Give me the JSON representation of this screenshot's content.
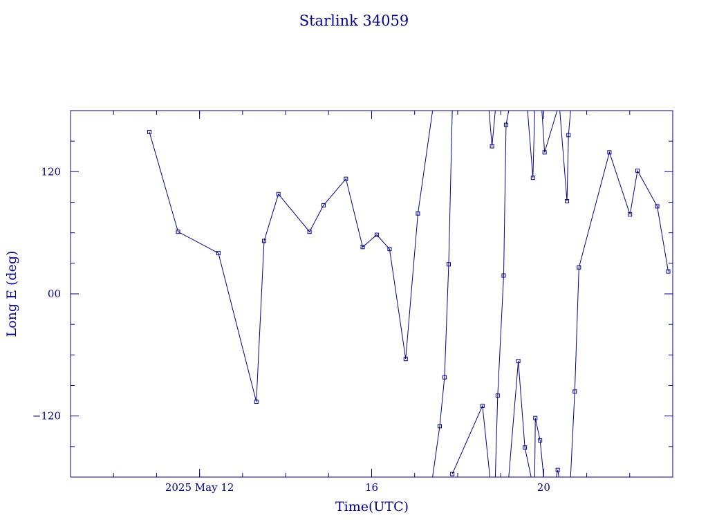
{
  "chart_data": {
    "type": "line",
    "title": "Starlink 34059",
    "xlabel": "Time(UTC)",
    "ylabel": "Long E (deg)",
    "color": "#00008b",
    "xlim": [
      "2025-05-09",
      "2025-05-23"
    ],
    "ylim": [
      -180,
      180
    ],
    "x_ticks": [
      {
        "value": "2025-05-12",
        "label": "2025 May 12"
      },
      {
        "value": "2025-05-16",
        "label": "16"
      },
      {
        "value": "2025-05-20",
        "label": "20"
      }
    ],
    "y_ticks": [
      {
        "value": -120,
        "label": "−120"
      },
      {
        "value": 0,
        "label": "00"
      },
      {
        "value": 120,
        "label": "120"
      }
    ],
    "series": [
      {
        "points": [
          {
            "x": "2025-05-10T20:00",
            "y": 159
          },
          {
            "x": "2025-05-11T12:00",
            "y": 61
          },
          {
            "x": "2025-05-12T10:30",
            "y": 40
          },
          {
            "x": "2025-05-13T07:40",
            "y": -106
          },
          {
            "x": "2025-05-13T12:00",
            "y": 52
          },
          {
            "x": "2025-05-13T20:00",
            "y": 98
          },
          {
            "x": "2025-05-14T13:20",
            "y": 61
          },
          {
            "x": "2025-05-14T21:10",
            "y": 87
          },
          {
            "x": "2025-05-15T09:40",
            "y": 113
          },
          {
            "x": "2025-05-15T19:00",
            "y": 46
          },
          {
            "x": "2025-05-16T02:50",
            "y": 58
          },
          {
            "x": "2025-05-16T10:00",
            "y": 44
          },
          {
            "x": "2025-05-16T19:00",
            "y": -64
          },
          {
            "x": "2025-05-17T01:50",
            "y": 79
          },
          {
            "x": "2025-05-17T10:00",
            "y": 180
          }
        ]
      },
      {
        "points": [
          {
            "x": "2025-05-17T10:00",
            "y": -180
          },
          {
            "x": "2025-05-17T14:00",
            "y": -130
          },
          {
            "x": "2025-05-17T16:40",
            "y": -82
          },
          {
            "x": "2025-05-17T19:00",
            "y": 29
          },
          {
            "x": "2025-05-17T21:00",
            "y": 180
          }
        ]
      },
      {
        "points": [
          {
            "x": "2025-05-17T21:00",
            "y": -177
          },
          {
            "x": "2025-05-18T13:50",
            "y": -110
          },
          {
            "x": "2025-05-18T18:00",
            "y": -180
          }
        ]
      },
      {
        "points": [
          {
            "x": "2025-05-18T17:30",
            "y": 180
          },
          {
            "x": "2025-05-18T19:10",
            "y": 145
          },
          {
            "x": "2025-05-18T21:00",
            "y": 180
          }
        ]
      },
      {
        "points": [
          {
            "x": "2025-05-18T21:00",
            "y": -180
          },
          {
            "x": "2025-05-18T22:20",
            "y": -100
          },
          {
            "x": "2025-05-19T01:40",
            "y": 18
          },
          {
            "x": "2025-05-19T03:00",
            "y": 166
          },
          {
            "x": "2025-05-19T04:30",
            "y": 180
          }
        ]
      },
      {
        "points": [
          {
            "x": "2025-05-19T04:30",
            "y": -180
          },
          {
            "x": "2025-05-19T09:50",
            "y": -66
          },
          {
            "x": "2025-05-19T13:30",
            "y": -151
          },
          {
            "x": "2025-05-19T17:00",
            "y": -180
          }
        ]
      },
      {
        "points": [
          {
            "x": "2025-05-19T15:00",
            "y": 180
          },
          {
            "x": "2025-05-19T18:00",
            "y": 114
          },
          {
            "x": "2025-05-19T19:00",
            "y": 180
          }
        ]
      },
      {
        "points": [
          {
            "x": "2025-05-19T19:00",
            "y": -180
          },
          {
            "x": "2025-05-19T19:20",
            "y": -122
          },
          {
            "x": "2025-05-19T22:00",
            "y": -144
          },
          {
            "x": "2025-05-20T00:00",
            "y": -180
          }
        ]
      },
      {
        "points": [
          {
            "x": "2025-05-19T23:00",
            "y": 180
          },
          {
            "x": "2025-05-20T00:30",
            "y": 139
          },
          {
            "x": "2025-05-20T07:30",
            "y": 180
          }
        ]
      },
      {
        "points": [
          {
            "x": "2025-05-20T07:00",
            "y": -180
          },
          {
            "x": "2025-05-20T07:50",
            "y": -173
          },
          {
            "x": "2025-05-20T08:30",
            "y": -180
          }
        ]
      },
      {
        "points": [
          {
            "x": "2025-05-20T09:00",
            "y": 180
          },
          {
            "x": "2025-05-20T13:00",
            "y": 91
          },
          {
            "x": "2025-05-20T13:50",
            "y": 156
          },
          {
            "x": "2025-05-20T15:00",
            "y": 180
          }
        ]
      },
      {
        "points": [
          {
            "x": "2025-05-20T15:00",
            "y": -180
          },
          {
            "x": "2025-05-20T17:20",
            "y": -96
          },
          {
            "x": "2025-05-20T19:40",
            "y": 26
          },
          {
            "x": "2025-05-21T12:40",
            "y": 139
          },
          {
            "x": "2025-05-22T00:10",
            "y": 78
          },
          {
            "x": "2025-05-22T04:20",
            "y": 121
          },
          {
            "x": "2025-05-22T15:20",
            "y": 86
          },
          {
            "x": "2025-05-22T21:30",
            "y": 22
          }
        ]
      }
    ]
  }
}
